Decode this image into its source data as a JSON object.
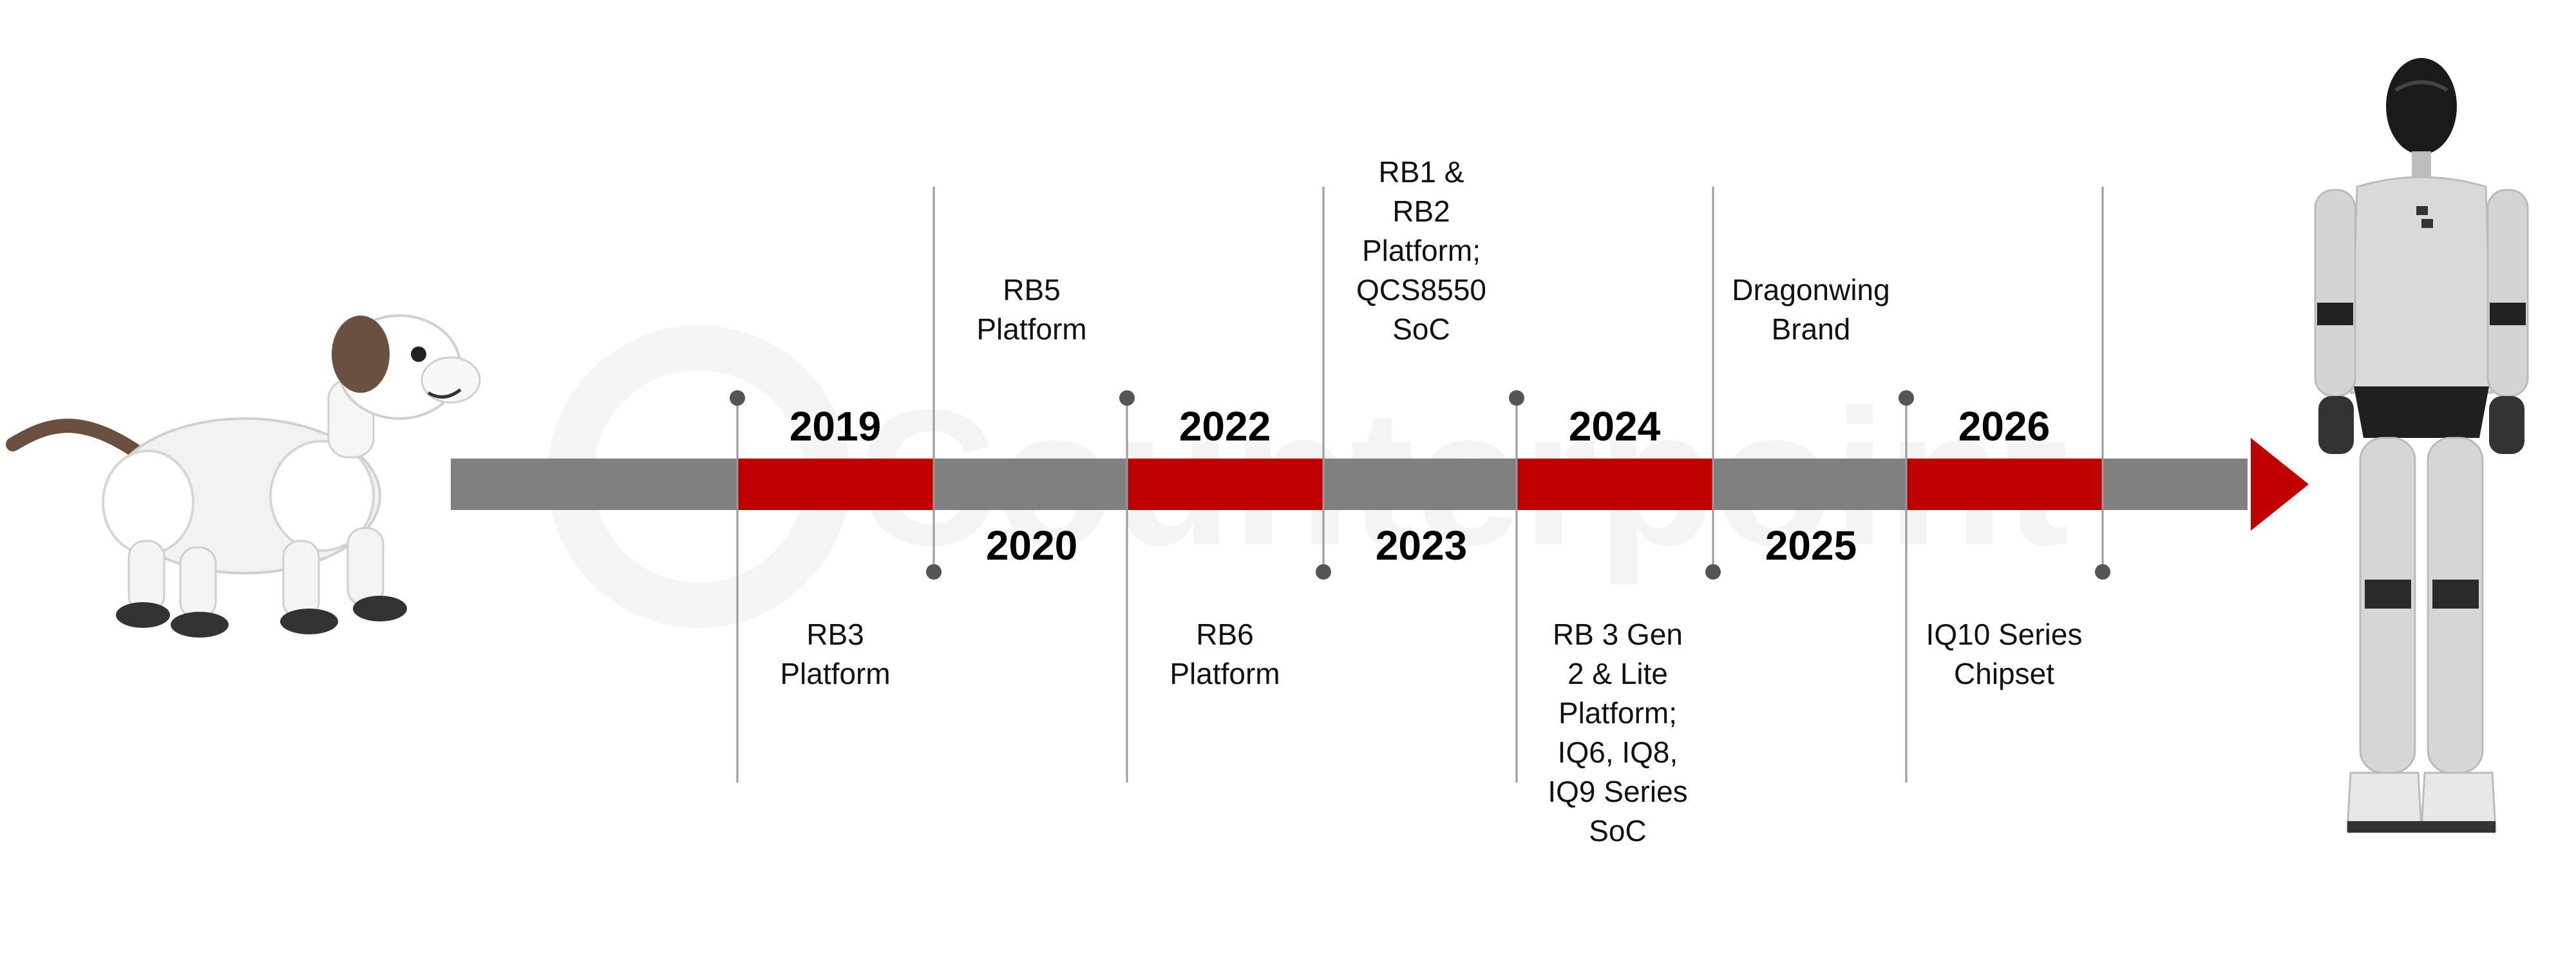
{
  "timeline": {
    "watermark": "Counterpoint",
    "colors": {
      "bar": "#808080",
      "highlight": "#c00000",
      "arrow": "#c00000",
      "line": "#999999",
      "dot": "#555555"
    },
    "milestones": [
      {
        "year": "2019",
        "label": "RB3\nPlatform"
      },
      {
        "year": "2020",
        "label": "RB5\nPlatform"
      },
      {
        "year": "2022",
        "label": "RB6\nPlatform"
      },
      {
        "year": "2023",
        "label": "RB1 &\nRB2\nPlatform;\nQCS8550\nSoC"
      },
      {
        "year": "2024",
        "label": "RB 3 Gen\n2 & Lite\nPlatform;\nIQ6, IQ8,\nIQ9 Series\nSoC"
      },
      {
        "year": "2025",
        "label": "Dragonwing\nBrand"
      },
      {
        "year": "2026",
        "label": "IQ10 Series\nChipset"
      }
    ]
  },
  "images": {
    "left": "robot-dog",
    "right": "humanoid-robot"
  }
}
